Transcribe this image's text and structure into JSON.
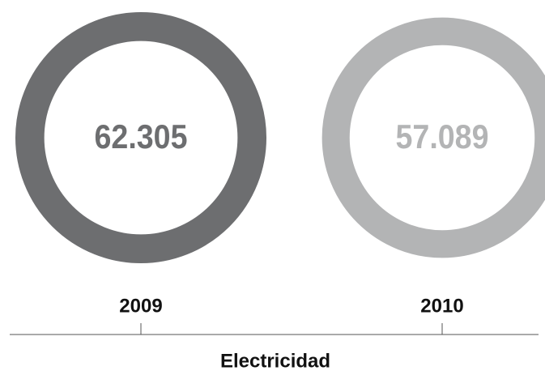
{
  "chart_data": {
    "type": "ring",
    "categories": [
      "2009",
      "2010"
    ],
    "values": [
      62305,
      57089
    ],
    "value_labels": [
      "62.305",
      "57.089"
    ],
    "colors": [
      "#6d6e70",
      "#b3b4b5"
    ],
    "x_label": "Electricidad"
  }
}
